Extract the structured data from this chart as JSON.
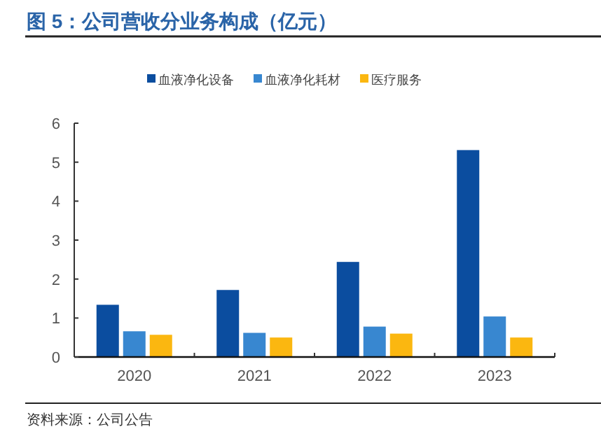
{
  "chart_data": {
    "type": "bar",
    "title": "图 5：公司营收分业务构成（亿元）",
    "categories": [
      "2020",
      "2021",
      "2022",
      "2023"
    ],
    "series": [
      {
        "name": "血液净化设备",
        "color": "#0b4d9f",
        "values": [
          1.34,
          1.72,
          2.44,
          5.31
        ]
      },
      {
        "name": "血液净化耗材",
        "color": "#3887d0",
        "values": [
          0.66,
          0.62,
          0.78,
          1.04
        ]
      },
      {
        "name": "医疗服务",
        "color": "#fbb710",
        "values": [
          0.57,
          0.5,
          0.6,
          0.5
        ]
      }
    ],
    "ylim": [
      0,
      6
    ],
    "yticks": [
      0,
      1,
      2,
      3,
      4,
      5,
      6
    ],
    "grid": false,
    "legend": "top",
    "annotations": [
      "资料来源：公司公告"
    ]
  }
}
